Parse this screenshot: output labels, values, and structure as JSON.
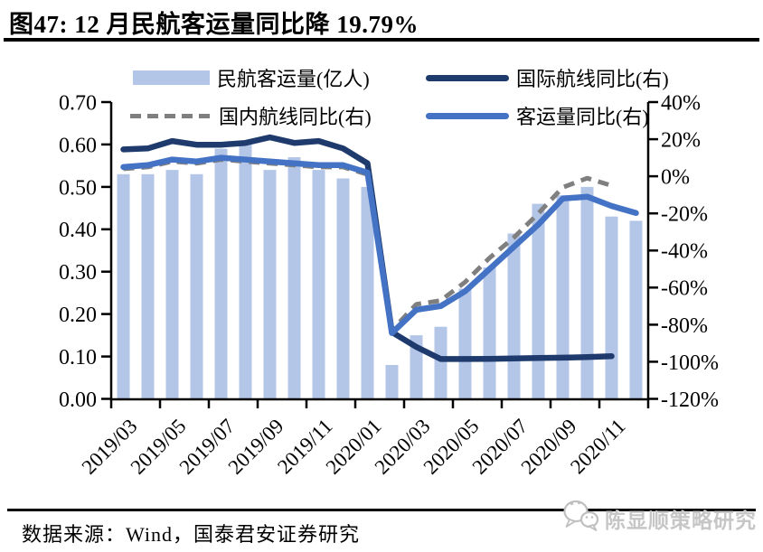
{
  "header": {
    "title": "图47: 12 月民航客运量同比降 19.79%"
  },
  "legend": {
    "items": [
      {
        "label": "民航客运量(亿人)",
        "type": "bar",
        "color": "#B4C6E7"
      },
      {
        "label": "国际航线同比(右)",
        "type": "line",
        "color": "#1F3B6D"
      },
      {
        "label": "国内航线同比(右)",
        "type": "dashed",
        "color": "#7F7F7F"
      },
      {
        "label": "客运量同比(右)",
        "type": "line",
        "color": "#4472C4"
      }
    ]
  },
  "chart_data": {
    "type": "combo-bar-line",
    "categories": [
      "2019/03",
      "2019/04",
      "2019/05",
      "2019/06",
      "2019/07",
      "2019/08",
      "2019/09",
      "2019/10",
      "2019/11",
      "2019/12",
      "2020/01",
      "2020/02",
      "2020/03",
      "2020/04",
      "2020/05",
      "2020/06",
      "2020/07",
      "2020/08",
      "2020/09",
      "2020/10",
      "2020/11",
      "2020/12"
    ],
    "x_tick_labels": [
      "2019/03",
      "2019/05",
      "2019/07",
      "2019/09",
      "2019/11",
      "2020/01",
      "2020/03",
      "2020/05",
      "2020/07",
      "2020/09",
      "2020/11"
    ],
    "bar_series": {
      "name": "民航客运量(亿人)",
      "axis": "left",
      "color": "#B4C6E7",
      "values": [
        0.53,
        0.53,
        0.54,
        0.53,
        0.59,
        0.6,
        0.54,
        0.57,
        0.54,
        0.52,
        0.5,
        0.08,
        0.15,
        0.17,
        0.26,
        0.31,
        0.39,
        0.46,
        0.48,
        0.5,
        0.43,
        0.42
      ]
    },
    "line_series": [
      {
        "name": "国际航线同比(右)",
        "axis": "right",
        "color": "#1F3B6D",
        "style": "solid",
        "values": [
          14.5,
          15,
          19,
          17,
          17,
          18,
          21,
          18,
          19,
          15,
          7,
          -84,
          -92,
          -98.5,
          -98.5,
          -98.4,
          -98.2,
          -98,
          -97.8,
          -97.5,
          -97,
          null
        ]
      },
      {
        "name": "国内航线同比(右)",
        "axis": "right",
        "color": "#7F7F7F",
        "style": "dashed",
        "values": [
          4,
          5,
          8,
          7,
          9,
          8,
          7,
          6,
          5,
          5,
          1,
          -83,
          -69,
          -67,
          -57,
          -44,
          -33,
          -20,
          -6,
          -1,
          -5,
          null
        ]
      },
      {
        "name": "客运量同比(右)",
        "axis": "right",
        "color": "#4472C4",
        "style": "solid",
        "values": [
          5,
          6,
          9,
          8,
          10,
          9,
          8,
          7,
          6,
          6,
          2,
          -84.5,
          -72,
          -70,
          -62,
          -50,
          -38,
          -26,
          -12,
          -11,
          -16,
          -19.79
        ]
      }
    ],
    "left_axis": {
      "min": 0.0,
      "max": 0.7,
      "step": 0.1,
      "tick_labels": [
        "0.00",
        "0.10",
        "0.20",
        "0.30",
        "0.40",
        "0.50",
        "0.60",
        "0.70"
      ]
    },
    "right_axis": {
      "min": -120,
      "max": 40,
      "step": 20,
      "tick_labels": [
        "40%",
        "20%",
        "0%",
        "-20%",
        "-40%",
        "-60%",
        "-80%",
        "-100%",
        "-120%"
      ]
    },
    "grid": false,
    "legend_position": "top"
  },
  "footer": {
    "source": "数据来源：Wind，国泰君安证券研究"
  },
  "watermark": {
    "text": "陈显顺策略研究",
    "icon": "wechat-logo-icon"
  },
  "colors": {
    "axis": "#000000",
    "background": "#ffffff",
    "watermark": "#c6c6c6"
  }
}
